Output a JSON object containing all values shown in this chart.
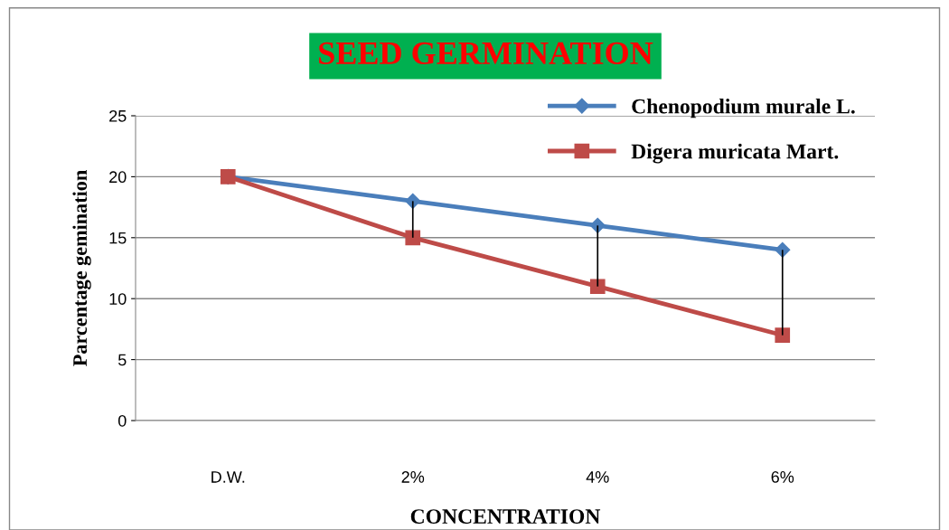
{
  "chart_data": {
    "type": "line",
    "title": "SEED GERMINATION",
    "xlabel": "CONCENTRATION",
    "ylabel": "Parcentage gemination",
    "categories": [
      "D.W.",
      "2%",
      "4%",
      "6%"
    ],
    "series": [
      {
        "name": "Chenopodium murale L.",
        "color": "#4a7ebb",
        "marker": "diamond",
        "values": [
          20,
          18,
          16,
          14
        ],
        "errors": [
          null,
          [
            15,
            18
          ],
          [
            11,
            16
          ],
          [
            7,
            14
          ]
        ]
      },
      {
        "name": "Digera muricata Mart.",
        "color": "#be4b48",
        "marker": "square",
        "values": [
          20,
          15,
          11,
          7
        ]
      }
    ],
    "ylim": [
      0,
      25
    ],
    "yticks": [
      0,
      5,
      10,
      15,
      20,
      25
    ],
    "grid": "y",
    "legend": "top right",
    "line_style": "solid"
  }
}
